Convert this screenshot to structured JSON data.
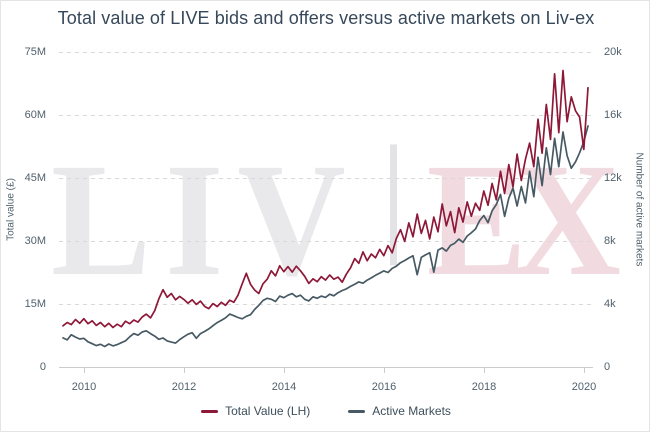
{
  "title": "Total value of LIVE bids and offers versus active markets on Liv-ex",
  "watermark": {
    "left_text": "LIV",
    "right_text": "EX"
  },
  "colors": {
    "total_value_line": "#8e1837",
    "active_markets_line": "#475a64",
    "title_text": "#36485a",
    "tick_text": "#51616d",
    "gridline": "#d9d9d9",
    "axis_line": "#c9cccf",
    "watermark_gray": "#e9e9eb",
    "watermark_bar": "#e3e3e6",
    "watermark_pink": "#f1dbe1"
  },
  "chart_data": {
    "type": "line",
    "title": "Total value of LIVE bids and offers versus active markets on Liv-ex",
    "grid": "horizontal-dashed",
    "x_axis": {
      "ticks": [
        2010,
        2012,
        2014,
        2016,
        2018,
        2020
      ],
      "labels": [
        "2010",
        "2012",
        "2014",
        "2016",
        "2018",
        "2020"
      ],
      "range": [
        2009.5,
        2020.2
      ]
    },
    "left_axis": {
      "title": "Total value (£)",
      "ticks": [
        0,
        15,
        30,
        45,
        60,
        75
      ],
      "labels": [
        "0",
        "15M",
        "30M",
        "45M",
        "60M",
        "75M"
      ],
      "range": [
        0,
        75
      ],
      "units": "GBP millions"
    },
    "right_axis": {
      "title": "Number of active markets",
      "ticks": [
        0,
        4,
        8,
        12,
        16,
        20
      ],
      "labels": [
        "0",
        "4k",
        "8k",
        "12k",
        "16k",
        "20k"
      ],
      "range": [
        0,
        20
      ],
      "units": "thousands of markets"
    },
    "legend": {
      "position": "bottom",
      "items": [
        {
          "label": "Total Value (LH)",
          "color": "#8e1837"
        },
        {
          "label": "Active Markets",
          "color": "#475a64"
        }
      ]
    },
    "series": [
      {
        "name": "Total Value (LH)",
        "axis": "left",
        "units": "GBP millions",
        "color": "#8e1837",
        "x_start": 2009.58,
        "x_step": 0.08333,
        "values": [
          9.8,
          10.6,
          10.1,
          11.3,
          10.4,
          11.5,
          10.3,
          11.0,
          9.9,
          10.6,
          9.6,
          10.4,
          9.4,
          10.2,
          9.6,
          10.9,
          10.3,
          11.2,
          10.7,
          11.9,
          12.6,
          11.7,
          13.4,
          16.2,
          18.4,
          16.6,
          17.5,
          16.0,
          16.8,
          16.1,
          15.2,
          16.0,
          14.9,
          15.7,
          14.4,
          13.9,
          15.1,
          14.4,
          15.4,
          14.7,
          15.9,
          15.4,
          17.1,
          19.8,
          22.3,
          19.7,
          18.3,
          17.5,
          19.8,
          20.9,
          22.9,
          21.7,
          24.1,
          22.7,
          23.9,
          22.6,
          24.0,
          22.9,
          21.6,
          19.9,
          21.0,
          20.3,
          21.5,
          20.7,
          21.9,
          20.9,
          21.4,
          20.2,
          22.1,
          23.6,
          25.8,
          24.7,
          27.4,
          25.3,
          26.9,
          26.0,
          28.0,
          26.5,
          28.9,
          27.2,
          30.6,
          32.7,
          29.9,
          34.3,
          31.0,
          36.4,
          31.8,
          34.9,
          30.5,
          35.7,
          32.2,
          38.8,
          33.6,
          37.0,
          32.0,
          37.9,
          34.5,
          39.3,
          35.9,
          39.0,
          37.3,
          41.9,
          38.5,
          43.7,
          39.8,
          46.6,
          41.3,
          48.2,
          42.9,
          50.7,
          44.4,
          49.5,
          53.3,
          47.7,
          59.0,
          50.9,
          62.5,
          54.2,
          69.8,
          55.8,
          70.6,
          58.4,
          64.3,
          61.0,
          59.5,
          51.8,
          66.5
        ]
      },
      {
        "name": "Active Markets",
        "axis": "right",
        "units": "thousands of markets",
        "color": "#475a64",
        "x_start": 2009.58,
        "x_step": 0.08333,
        "values": [
          1.85,
          1.72,
          2.05,
          1.9,
          1.78,
          1.82,
          1.6,
          1.48,
          1.36,
          1.44,
          1.3,
          1.46,
          1.34,
          1.42,
          1.54,
          1.66,
          1.92,
          2.12,
          2.02,
          2.22,
          2.3,
          2.12,
          1.96,
          1.76,
          1.84,
          1.66,
          1.58,
          1.52,
          1.74,
          1.92,
          2.08,
          2.18,
          1.82,
          2.12,
          2.26,
          2.42,
          2.62,
          2.82,
          2.96,
          3.12,
          3.36,
          3.26,
          3.14,
          3.06,
          3.22,
          3.32,
          3.66,
          3.92,
          4.22,
          4.36,
          4.3,
          4.16,
          4.5,
          4.4,
          4.56,
          4.66,
          4.46,
          4.56,
          4.3,
          4.2,
          4.46,
          4.36,
          4.5,
          4.42,
          4.62,
          4.52,
          4.72,
          4.86,
          4.96,
          5.12,
          5.26,
          5.4,
          5.32,
          5.52,
          5.66,
          5.82,
          5.96,
          6.1,
          6.0,
          6.26,
          6.4,
          6.62,
          6.76,
          6.92,
          7.06,
          5.86,
          6.96,
          7.12,
          7.26,
          6.02,
          7.42,
          7.56,
          7.36,
          7.72,
          7.86,
          8.12,
          7.92,
          8.32,
          8.52,
          8.76,
          9.3,
          9.62,
          9.16,
          9.92,
          10.32,
          10.96,
          9.56,
          10.72,
          11.36,
          10.22,
          11.46,
          10.42,
          12.42,
          10.82,
          13.32,
          11.52,
          13.92,
          12.22,
          14.52,
          12.72,
          14.92,
          13.42,
          12.62,
          13.02,
          13.6,
          14.3,
          15.3
        ]
      }
    ]
  }
}
